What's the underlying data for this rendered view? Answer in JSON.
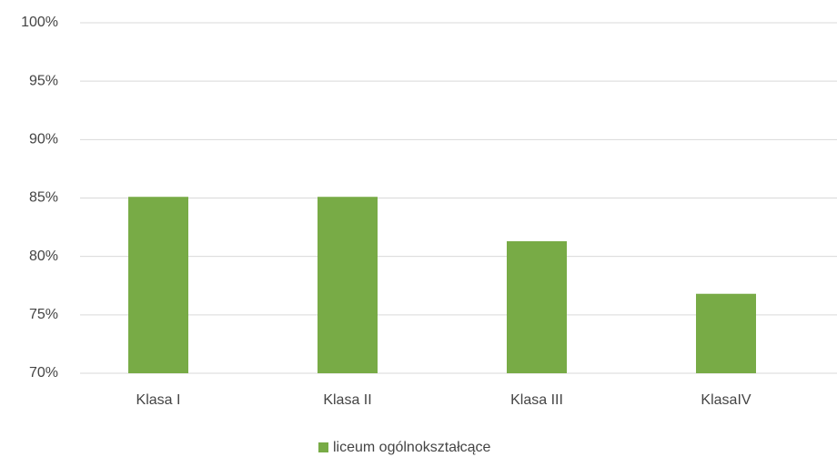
{
  "chart_data": {
    "type": "bar",
    "categories": [
      "Klasa I",
      "Klasa II",
      "Klasa III",
      "KlasaIV"
    ],
    "series": [
      {
        "name": "liceum ogólnokształcące",
        "color": "#78ab46",
        "values": [
          85.1,
          85.1,
          81.3,
          76.8
        ]
      }
    ],
    "ylim": [
      70,
      100
    ],
    "yticks": [
      {
        "value": 70,
        "label": "70%"
      },
      {
        "value": 75,
        "label": "75%"
      },
      {
        "value": 80,
        "label": "80%"
      },
      {
        "value": 85,
        "label": "85%"
      },
      {
        "value": 90,
        "label": "90%"
      },
      {
        "value": 95,
        "label": "95%"
      },
      {
        "value": 100,
        "label": "100%"
      }
    ],
    "grid": true,
    "legend": "bottom"
  }
}
